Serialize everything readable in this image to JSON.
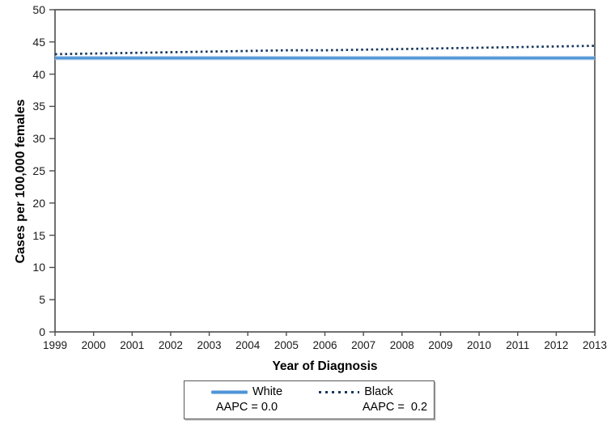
{
  "chart_data": {
    "type": "line",
    "title": "",
    "xlabel": "Year of Diagnosis",
    "ylabel": "Cases per 100,000 females",
    "x": [
      1999,
      2000,
      2001,
      2002,
      2003,
      2004,
      2005,
      2006,
      2007,
      2008,
      2009,
      2010,
      2011,
      2012,
      2013
    ],
    "xlim": [
      1999,
      2013
    ],
    "ylim": [
      0,
      50
    ],
    "y_ticks": [
      0,
      5,
      10,
      15,
      20,
      25,
      30,
      35,
      40,
      45,
      50
    ],
    "grid": false,
    "legend_position": "bottom",
    "series": [
      {
        "name": "White",
        "aapc_label": "AAPC = 0.0",
        "style": "solid",
        "color": "#4E94D8",
        "halo_color": "#9DC3E6",
        "values": [
          42.5,
          42.5,
          42.5,
          42.5,
          42.5,
          42.5,
          42.5,
          42.5,
          42.5,
          42.5,
          42.5,
          42.5,
          42.5,
          42.5,
          42.5
        ]
      },
      {
        "name": "Black",
        "aapc_label": "AAPC =  0.2",
        "style": "dotted",
        "color": "#17375E",
        "values": [
          43.1,
          43.2,
          43.3,
          43.4,
          43.5,
          43.6,
          43.7,
          43.7,
          43.8,
          43.9,
          44.0,
          44.1,
          44.2,
          44.3,
          44.4
        ]
      }
    ]
  },
  "axes": {
    "line_color": "#4d4d4d",
    "text_color": "#1a1a1a"
  }
}
